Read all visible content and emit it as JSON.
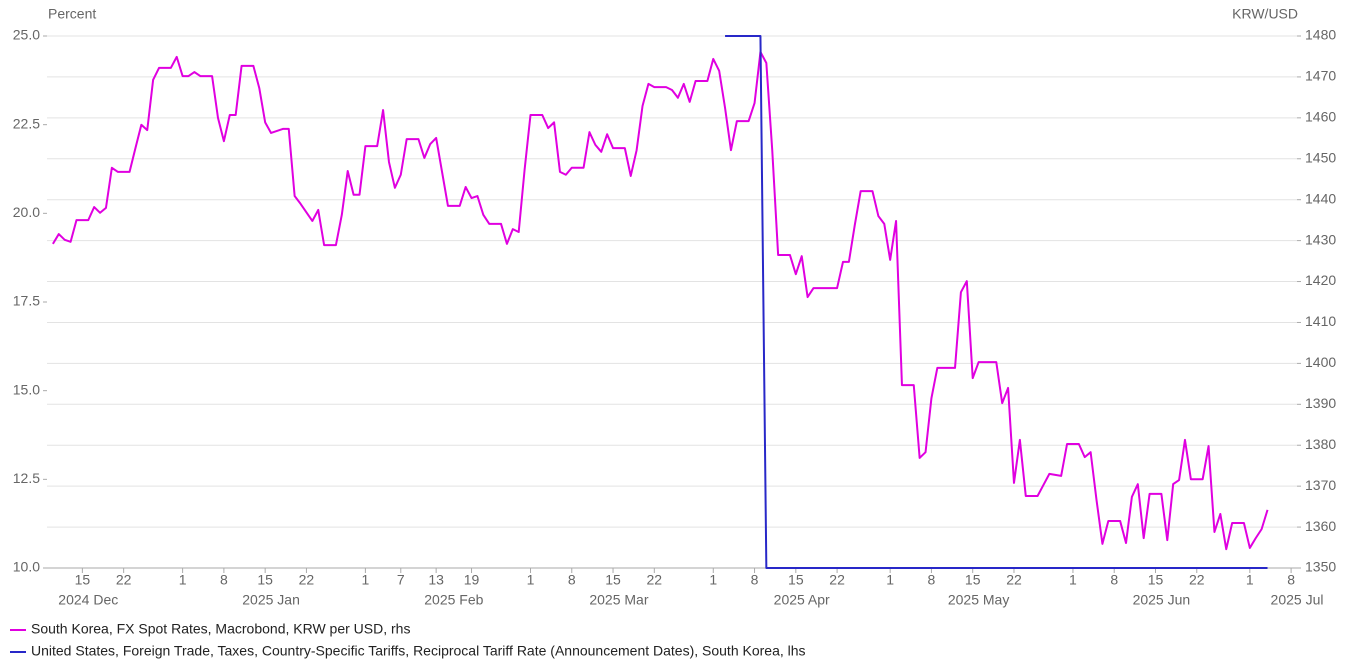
{
  "chart_data": {
    "type": "line",
    "y_label": "Percent",
    "y2_label": "KRW/USD",
    "xlim": [
      "2024-12-09",
      "2025-07-09"
    ],
    "ylim": [
      10,
      25
    ],
    "yticks": [
      {
        "value": 10,
        "label": "10.0"
      },
      {
        "value": 12.5,
        "label": "12.5"
      },
      {
        "value": 15,
        "label": "15.0"
      },
      {
        "value": 17.5,
        "label": "17.5"
      },
      {
        "value": 20,
        "label": "20.0"
      },
      {
        "value": 22.5,
        "label": "22.5"
      },
      {
        "value": 25,
        "label": "25.0"
      }
    ],
    "y2lim": [
      1350,
      1480
    ],
    "y2ticks": [
      1350,
      1360,
      1370,
      1380,
      1390,
      1400,
      1410,
      1420,
      1430,
      1440,
      1450,
      1460,
      1470,
      1480
    ],
    "grid": "y2",
    "xticks": [
      {
        "value": "2024-12-15",
        "label": "15"
      },
      {
        "value": "2024-12-22",
        "label": "22"
      },
      {
        "value": "2025-01-01",
        "label": "1"
      },
      {
        "value": "2025-01-08",
        "label": "8"
      },
      {
        "value": "2025-01-15",
        "label": "15"
      },
      {
        "value": "2025-01-22",
        "label": "22"
      },
      {
        "value": "2025-02-01",
        "label": "1"
      },
      {
        "value": "2025-02-07",
        "label": "7"
      },
      {
        "value": "2025-02-13",
        "label": "13"
      },
      {
        "value": "2025-02-19",
        "label": "19"
      },
      {
        "value": "2025-03-01",
        "label": "1"
      },
      {
        "value": "2025-03-08",
        "label": "8"
      },
      {
        "value": "2025-03-15",
        "label": "15"
      },
      {
        "value": "2025-03-22",
        "label": "22"
      },
      {
        "value": "2025-04-01",
        "label": "1"
      },
      {
        "value": "2025-04-08",
        "label": "8"
      },
      {
        "value": "2025-04-15",
        "label": "15"
      },
      {
        "value": "2025-04-22",
        "label": "22"
      },
      {
        "value": "2025-05-01",
        "label": "1"
      },
      {
        "value": "2025-05-08",
        "label": "8"
      },
      {
        "value": "2025-05-15",
        "label": "15"
      },
      {
        "value": "2025-05-22",
        "label": "22"
      },
      {
        "value": "2025-06-01",
        "label": "1"
      },
      {
        "value": "2025-06-08",
        "label": "8"
      },
      {
        "value": "2025-06-15",
        "label": "15"
      },
      {
        "value": "2025-06-22",
        "label": "22"
      },
      {
        "value": "2025-07-01",
        "label": "1"
      },
      {
        "value": "2025-07-08",
        "label": "8"
      }
    ],
    "month_labels": [
      {
        "value": "2024-12",
        "label": "2024 Dec"
      },
      {
        "value": "2025-01",
        "label": "2025 Jan"
      },
      {
        "value": "2025-02",
        "label": "2025 Feb"
      },
      {
        "value": "2025-03",
        "label": "2025 Mar"
      },
      {
        "value": "2025-04",
        "label": "2025 Apr"
      },
      {
        "value": "2025-05",
        "label": "2025 May"
      },
      {
        "value": "2025-06",
        "label": "2025 Jun"
      },
      {
        "value": "2025-07",
        "label": "2025 Jul"
      }
    ],
    "series": [
      {
        "name": "South Korea, FX Spot Rates, Macrobond, KRW per USD, rhs",
        "color": "#e000e0",
        "axis": "y2",
        "x": [
          "2024-12-10",
          "2024-12-11",
          "2024-12-12",
          "2024-12-13",
          "2024-12-14",
          "2024-12-16",
          "2024-12-17",
          "2024-12-18",
          "2024-12-19",
          "2024-12-20",
          "2024-12-21",
          "2024-12-23",
          "2024-12-24",
          "2024-12-25",
          "2024-12-26",
          "2024-12-27",
          "2024-12-28",
          "2024-12-30",
          "2024-12-31",
          "2025-01-01",
          "2025-01-02",
          "2025-01-03",
          "2025-01-04",
          "2025-01-06",
          "2025-01-07",
          "2025-01-08",
          "2025-01-09",
          "2025-01-10",
          "2025-01-11",
          "2025-01-13",
          "2025-01-14",
          "2025-01-15",
          "2025-01-16",
          "2025-01-18",
          "2025-01-19",
          "2025-01-20",
          "2025-01-21",
          "2025-01-23",
          "2025-01-24",
          "2025-01-25",
          "2025-01-27",
          "2025-01-28",
          "2025-01-29",
          "2025-01-30",
          "2025-01-31",
          "2025-02-01",
          "2025-02-03",
          "2025-02-04",
          "2025-02-05",
          "2025-02-06",
          "2025-02-07",
          "2025-02-08",
          "2025-02-10",
          "2025-02-11",
          "2025-02-12",
          "2025-02-13",
          "2025-02-15",
          "2025-02-17",
          "2025-02-18",
          "2025-02-19",
          "2025-02-20",
          "2025-02-21",
          "2025-02-22",
          "2025-02-24",
          "2025-02-25",
          "2025-02-26",
          "2025-02-27",
          "2025-02-28",
          "2025-03-01",
          "2025-03-03",
          "2025-03-04",
          "2025-03-05",
          "2025-03-06",
          "2025-03-07",
          "2025-03-08",
          "2025-03-10",
          "2025-03-11",
          "2025-03-12",
          "2025-03-13",
          "2025-03-14",
          "2025-03-15",
          "2025-03-17",
          "2025-03-18",
          "2025-03-19",
          "2025-03-20",
          "2025-03-21",
          "2025-03-22",
          "2025-03-24",
          "2025-03-25",
          "2025-03-26",
          "2025-03-27",
          "2025-03-28",
          "2025-03-29",
          "2025-03-31",
          "2025-04-01",
          "2025-04-02",
          "2025-04-03",
          "2025-04-04",
          "2025-04-05",
          "2025-04-07",
          "2025-04-08",
          "2025-04-09",
          "2025-04-10",
          "2025-04-11",
          "2025-04-12",
          "2025-04-14",
          "2025-04-15",
          "2025-04-16",
          "2025-04-17",
          "2025-04-18",
          "2025-04-22",
          "2025-04-23",
          "2025-04-24",
          "2025-04-25",
          "2025-04-26",
          "2025-04-28",
          "2025-04-29",
          "2025-04-30",
          "2025-05-01",
          "2025-05-02",
          "2025-05-03",
          "2025-05-05",
          "2025-05-06",
          "2025-05-07",
          "2025-05-08",
          "2025-05-09",
          "2025-05-12",
          "2025-05-13",
          "2025-05-14",
          "2025-05-15",
          "2025-05-16",
          "2025-05-19",
          "2025-05-20",
          "2025-05-21",
          "2025-05-22",
          "2025-05-23",
          "2025-05-24",
          "2025-05-26",
          "2025-05-27",
          "2025-05-28",
          "2025-05-30",
          "2025-05-31",
          "2025-06-02",
          "2025-06-03",
          "2025-06-04",
          "2025-06-05",
          "2025-06-06",
          "2025-06-07",
          "2025-06-09",
          "2025-06-10",
          "2025-06-11",
          "2025-06-12",
          "2025-06-13",
          "2025-06-14",
          "2025-06-16",
          "2025-06-17",
          "2025-06-18",
          "2025-06-19",
          "2025-06-20",
          "2025-06-21",
          "2025-06-23",
          "2025-06-24",
          "2025-06-25",
          "2025-06-26",
          "2025-06-27",
          "2025-06-28",
          "2025-06-30",
          "2025-07-01",
          "2025-07-02",
          "2025-07-03",
          "2025-07-04"
        ],
        "values": [
          1429.2,
          1431.6,
          1430.2,
          1429.7,
          1435,
          1435,
          1438.2,
          1436.8,
          1438,
          1447.8,
          1446.8,
          1446.8,
          1452.6,
          1458.3,
          1457,
          1469.3,
          1472.2,
          1472.2,
          1474.9,
          1470.2,
          1470.2,
          1471.2,
          1470.2,
          1470.2,
          1460,
          1454.3,
          1460.7,
          1460.7,
          1472.7,
          1472.7,
          1467.3,
          1458.9,
          1456.3,
          1457.3,
          1457.3,
          1440.9,
          1439,
          1434.8,
          1437.5,
          1428.9,
          1428.9,
          1436.3,
          1447,
          1441.2,
          1441.2,
          1453.1,
          1453.1,
          1461.9,
          1449.2,
          1442.9,
          1446.1,
          1454.8,
          1454.8,
          1450.2,
          1453.6,
          1455.1,
          1438.5,
          1438.5,
          1443.1,
          1440.4,
          1440.9,
          1436.3,
          1434.1,
          1434.1,
          1429.2,
          1432.8,
          1432.1,
          1447.3,
          1460.7,
          1460.7,
          1457.5,
          1458.9,
          1446.8,
          1446.1,
          1447.8,
          1447.8,
          1456.5,
          1453.4,
          1451.7,
          1456,
          1452.6,
          1452.6,
          1445.8,
          1452.1,
          1462.9,
          1468.3,
          1467.5,
          1467.5,
          1466.8,
          1464.9,
          1468.3,
          1463.9,
          1469,
          1469,
          1474.4,
          1471.5,
          1462.4,
          1452.1,
          1459.2,
          1459.2,
          1463.6,
          1476.1,
          1473.4,
          1452.1,
          1426.5,
          1426.5,
          1421.8,
          1426.2,
          1416.2,
          1418.4,
          1418.4,
          1424.8,
          1424.8,
          1433.8,
          1442.1,
          1442.1,
          1436,
          1434.1,
          1425.3,
          1434.8,
          1394.7,
          1394.7,
          1376.9,
          1378.3,
          1391.5,
          1398.9,
          1398.9,
          1417.4,
          1420.1,
          1396.4,
          1400.3,
          1400.3,
          1390.3,
          1394,
          1370.8,
          1381.3,
          1367.6,
          1367.6,
          1370.3,
          1373,
          1372.5,
          1380.3,
          1380.3,
          1377.1,
          1378.3,
          1366.6,
          1355.9,
          1361.5,
          1361.5,
          1356.1,
          1367.4,
          1370.5,
          1357.3,
          1368.1,
          1368.1,
          1356.8,
          1370.5,
          1371.5,
          1381.3,
          1371.7,
          1371.7,
          1379.8,
          1358.8,
          1363.2,
          1354.6,
          1361,
          1361,
          1354.9,
          1357.3,
          1359.5,
          1364.2
        ]
      },
      {
        "name": "United States, Foreign Trade, Taxes, Country-Specific Tariffs, Reciprocal Tariff Rate (Announcement Dates), South Korea, lhs",
        "color": "#2828c8",
        "axis": "y",
        "x": [
          "2025-04-03",
          "2025-04-09",
          "2025-04-10",
          "2025-07-04"
        ],
        "values": [
          25,
          25,
          10,
          10
        ]
      }
    ]
  }
}
